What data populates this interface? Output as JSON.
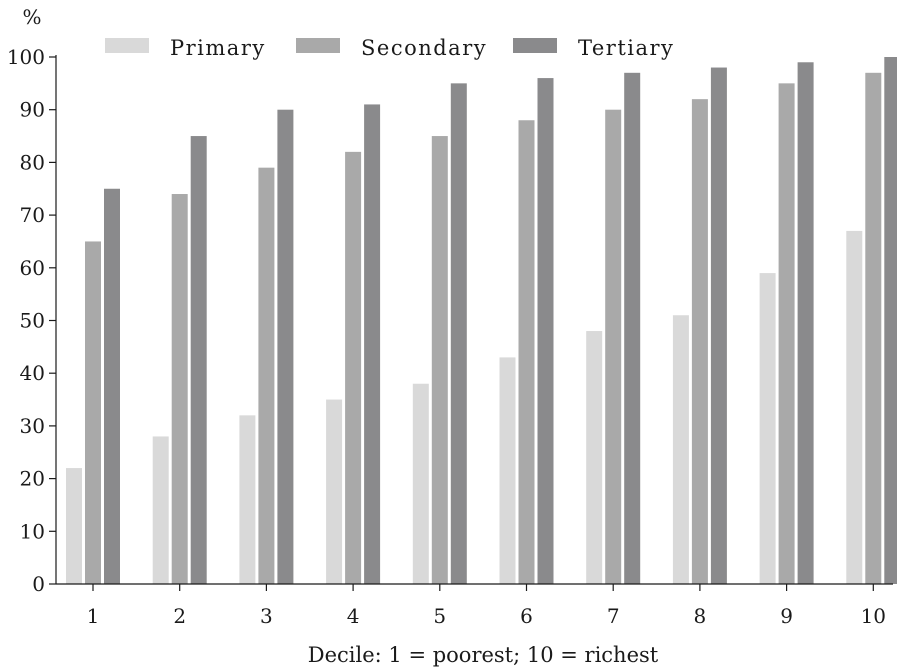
{
  "chart_data": {
    "type": "bar",
    "ylabel": "%",
    "xlabel": "Decile: 1 = poorest; 10 = richest",
    "categories": [
      "1",
      "2",
      "3",
      "4",
      "5",
      "6",
      "7",
      "8",
      "9",
      "10"
    ],
    "ylim": [
      0,
      100
    ],
    "yticks": [
      0,
      10,
      20,
      30,
      40,
      50,
      60,
      70,
      80,
      90,
      100
    ],
    "grid": false,
    "legend": "top",
    "series": [
      {
        "name": "Primary",
        "color": "#d9d9d9",
        "values": [
          22,
          28,
          32,
          35,
          38,
          43,
          48,
          51,
          59,
          67
        ]
      },
      {
        "name": "Secondary",
        "color": "#a9a9a9",
        "values": [
          65,
          74,
          79,
          82,
          85,
          88,
          90,
          92,
          95,
          97
        ]
      },
      {
        "name": "Tertiary",
        "color": "#8a8a8c",
        "values": [
          75,
          85,
          90,
          91,
          95,
          96,
          97,
          98,
          99,
          100
        ]
      }
    ]
  }
}
